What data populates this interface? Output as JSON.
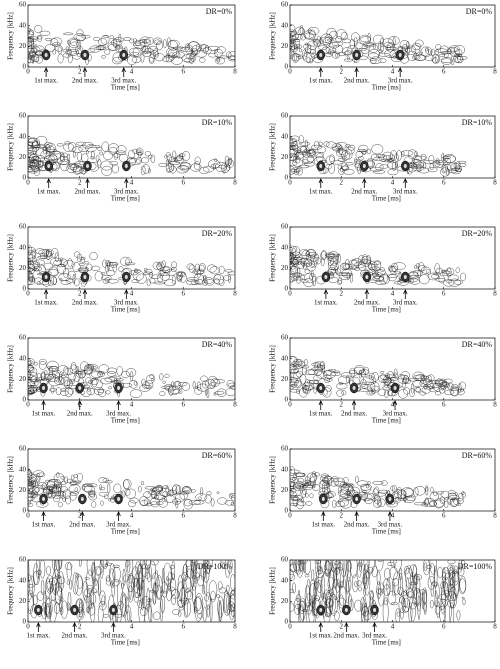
{
  "chart_data": [
    {
      "type": "contour",
      "title": "DR=0%",
      "x_label": "Time [ms]",
      "y_label": "Frequency [kHz]",
      "xlim": [
        0,
        8
      ],
      "ylim": [
        0,
        60
      ],
      "xticks": [
        0,
        2,
        4,
        6,
        8
      ],
      "yticks": [
        0,
        20,
        40,
        60
      ],
      "annotations": [
        {
          "text": "1st max.",
          "x": 0.7
        },
        {
          "text": "2nd max.",
          "x": 2.2
        },
        {
          "text": "3rd max.",
          "x": 3.7
        }
      ]
    },
    {
      "type": "contour",
      "title": "DR=0%",
      "x_label": "Time [ms]",
      "y_label": "Frequency [kHz]",
      "xlim": [
        0,
        8
      ],
      "ylim": [
        0,
        60
      ],
      "xticks": [
        0,
        2,
        4,
        6,
        8
      ],
      "yticks": [
        0,
        20,
        40,
        60
      ],
      "annotations": [
        {
          "text": "1st max.",
          "x": 1.2
        },
        {
          "text": "2nd max.",
          "x": 2.6
        },
        {
          "text": "3rd max.",
          "x": 4.3
        }
      ]
    },
    {
      "type": "contour",
      "title": "DR=10%",
      "x_label": "Time [ms]",
      "y_label": "Frequency [kHz]",
      "xlim": [
        0,
        8
      ],
      "ylim": [
        0,
        60
      ],
      "xticks": [
        0,
        2,
        4,
        6,
        8
      ],
      "yticks": [
        0,
        20,
        40,
        60
      ],
      "annotations": [
        {
          "text": "1st max.",
          "x": 0.8
        },
        {
          "text": "2nd max.",
          "x": 2.3
        },
        {
          "text": "3rd max.",
          "x": 3.8
        }
      ]
    },
    {
      "type": "contour",
      "title": "DR=10%",
      "x_label": "Time [ms]",
      "y_label": "Frequency [kHz]",
      "xlim": [
        0,
        8
      ],
      "ylim": [
        0,
        60
      ],
      "xticks": [
        0,
        2,
        4,
        6,
        8
      ],
      "yticks": [
        0,
        20,
        40,
        60
      ],
      "annotations": [
        {
          "text": "1st max.",
          "x": 1.2
        },
        {
          "text": "2nd max.",
          "x": 2.9
        },
        {
          "text": "3rd max.",
          "x": 4.5
        }
      ]
    },
    {
      "type": "contour",
      "title": "DR=20%",
      "x_label": "Time [ms]",
      "y_label": "Frequency [kHz]",
      "xlim": [
        0,
        8
      ],
      "ylim": [
        0,
        60
      ],
      "xticks": [
        0,
        2,
        4,
        6,
        8
      ],
      "yticks": [
        0,
        20,
        40,
        60
      ],
      "annotations": [
        {
          "text": "1st max.",
          "x": 0.7
        },
        {
          "text": "2nd max.",
          "x": 2.2
        },
        {
          "text": "3rd max.",
          "x": 3.8
        }
      ]
    },
    {
      "type": "contour",
      "title": "DR=20%",
      "x_label": "Time [ms]",
      "y_label": "Frequency [kHz]",
      "xlim": [
        0,
        8
      ],
      "ylim": [
        0,
        60
      ],
      "xticks": [
        0,
        2,
        4,
        6,
        8
      ],
      "yticks": [
        0,
        20,
        40,
        60
      ],
      "annotations": [
        {
          "text": "1st max.",
          "x": 1.4
        },
        {
          "text": "2nd max.",
          "x": 3.0
        },
        {
          "text": "3rd max.",
          "x": 4.5
        }
      ]
    },
    {
      "type": "contour",
      "title": "DR=40%",
      "x_label": "Time [ms]",
      "y_label": "Frequency [kHz]",
      "xlim": [
        0,
        8
      ],
      "ylim": [
        0,
        60
      ],
      "xticks": [
        0,
        2,
        4,
        6,
        8
      ],
      "yticks": [
        0,
        20,
        40,
        60
      ],
      "annotations": [
        {
          "text": "1st max.",
          "x": 0.6
        },
        {
          "text": "2nd max.",
          "x": 2.0
        },
        {
          "text": "3rd max.",
          "x": 3.5
        }
      ]
    },
    {
      "type": "contour",
      "title": "DR=40%",
      "x_label": "Time [ms]",
      "y_label": "Frequency [kHz]",
      "xlim": [
        0,
        8
      ],
      "ylim": [
        0,
        60
      ],
      "xticks": [
        0,
        2,
        4,
        6,
        8
      ],
      "yticks": [
        0,
        20,
        40,
        60
      ],
      "annotations": [
        {
          "text": "1st max.",
          "x": 1.2
        },
        {
          "text": "2nd max.",
          "x": 2.5
        },
        {
          "text": "3rd max.",
          "x": 4.1
        }
      ]
    },
    {
      "type": "contour",
      "title": "DR=60%",
      "x_label": "Time [ms]",
      "y_label": "Frequency [kHz]",
      "xlim": [
        0,
        8
      ],
      "ylim": [
        0,
        60
      ],
      "xticks": [
        0,
        2,
        4,
        6,
        8
      ],
      "yticks": [
        0,
        20,
        40,
        60
      ],
      "annotations": [
        {
          "text": "1st max.",
          "x": 0.6
        },
        {
          "text": "2nd max.",
          "x": 2.1
        },
        {
          "text": "3rd max.",
          "x": 3.5
        }
      ]
    },
    {
      "type": "contour",
      "title": "DR=60%",
      "x_label": "Time [ms]",
      "y_label": "Frequency [kHz]",
      "xlim": [
        0,
        8
      ],
      "ylim": [
        0,
        60
      ],
      "xticks": [
        0,
        2,
        4,
        6,
        8
      ],
      "yticks": [
        0,
        20,
        40,
        60
      ],
      "annotations": [
        {
          "text": "1st max.",
          "x": 1.3
        },
        {
          "text": "2nd max.",
          "x": 2.6
        },
        {
          "text": "3rd max.",
          "x": 3.9
        }
      ]
    },
    {
      "type": "contour",
      "title": "DR=100%",
      "x_label": "Time [ms]",
      "y_label": "Frequency [kHz]",
      "xlim": [
        0,
        8
      ],
      "ylim": [
        0,
        60
      ],
      "xticks": [
        0,
        2,
        4,
        6,
        8
      ],
      "yticks": [
        0,
        20,
        40,
        60
      ],
      "annotations": [
        {
          "text": "1st max.",
          "x": 0.4
        },
        {
          "text": "2nd max.",
          "x": 1.8
        },
        {
          "text": "3rd max.",
          "x": 3.3
        }
      ]
    },
    {
      "type": "contour",
      "title": "DR=100%",
      "x_label": "Time [ms]",
      "y_label": "Frequency [kHz]",
      "xlim": [
        0,
        8
      ],
      "ylim": [
        0,
        60
      ],
      "xticks": [
        0,
        2,
        4,
        6,
        8
      ],
      "yticks": [
        0,
        20,
        40,
        60
      ],
      "annotations": [
        {
          "text": "1st max.",
          "x": 1.2
        },
        {
          "text": "2nd max.",
          "x": 2.2
        },
        {
          "text": "3rd max.",
          "x": 3.3
        }
      ]
    }
  ]
}
